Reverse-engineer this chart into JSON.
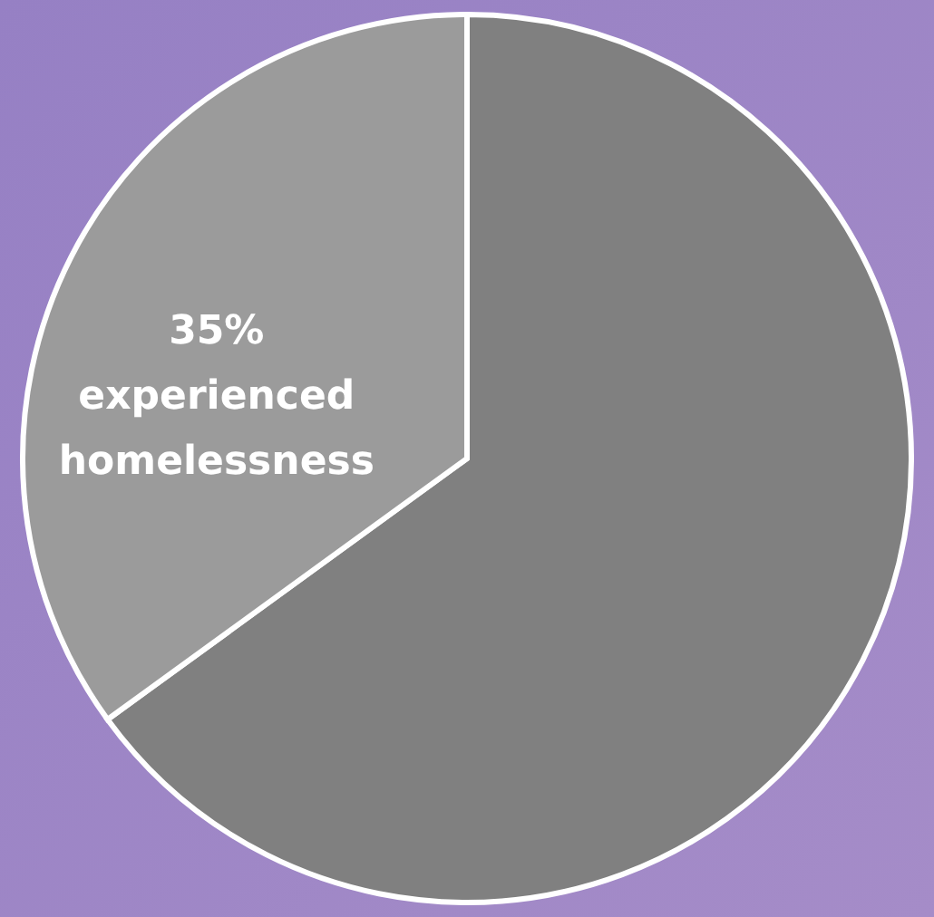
{
  "chart_data": {
    "type": "pie",
    "categories": [
      null,
      "experienced homelessness"
    ],
    "values": [
      65,
      35
    ],
    "colors": [
      "#808080",
      "#9b9b9b"
    ],
    "value_labels": [
      null,
      "35%"
    ]
  }
}
